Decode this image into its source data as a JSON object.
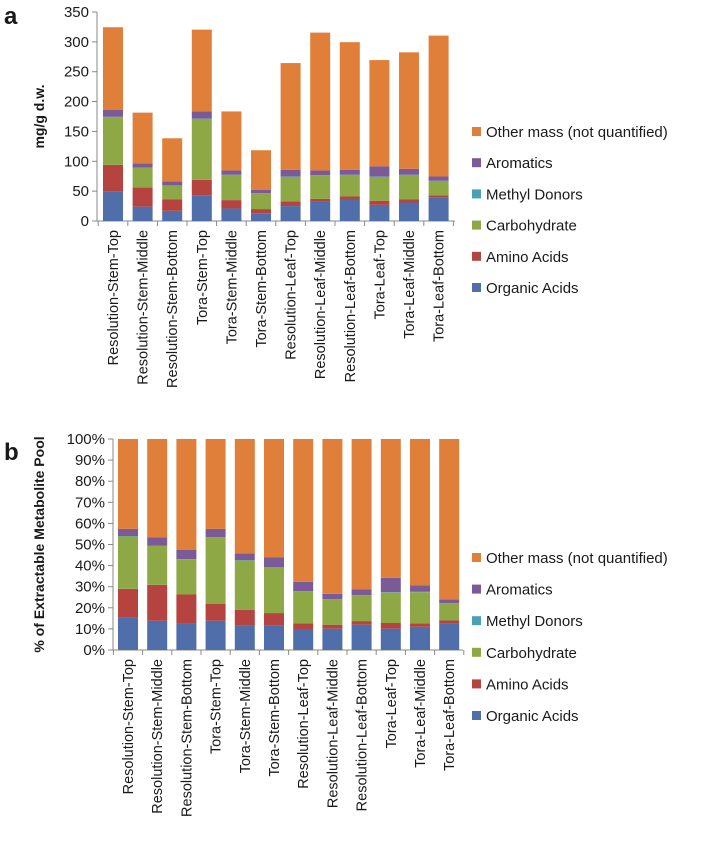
{
  "chart_data": [
    {
      "panel_label": "a",
      "type": "bar",
      "stacked": true,
      "ylabel": "mg/g d.w.",
      "xlabel": "",
      "ylim": [
        0,
        350
      ],
      "yticks": [
        "0",
        "50",
        "100",
        "150",
        "200",
        "250",
        "300",
        "350"
      ],
      "grid": false,
      "legend_position": "right",
      "categories": [
        "Resolution-Stem-Top",
        "Resolution-Stem-Middle",
        "Resolution-Stem-Bottom",
        "Tora-Stem-Top",
        "Tora-Stem-Middle",
        "Tora-Stem-Bottom",
        "Resolution-Leaf-Top",
        "Resolution-Leaf-Middle",
        "Resolution-Leaf-Bottom",
        "Tora-Leaf-Top",
        "Tora-Leaf-Middle",
        "Tora-Leaf-Bottom"
      ],
      "series": [
        {
          "name": "Organic Acids",
          "color": "#4f6eaa",
          "values": [
            50,
            24,
            17,
            43,
            21,
            13,
            25,
            32,
            36,
            27,
            31,
            40
          ]
        },
        {
          "name": "Amino Acids",
          "color": "#b5433f",
          "values": [
            44,
            32,
            19,
            26,
            14,
            7,
            8,
            5,
            5,
            7,
            5,
            3
          ]
        },
        {
          "name": "Carbohydrate",
          "color": "#8ea846",
          "values": [
            80,
            33,
            23,
            102,
            42,
            26,
            41,
            39,
            36,
            40,
            41,
            24
          ]
        },
        {
          "name": "Methyl Donors",
          "color": "#4aa0b5",
          "values": [
            0.5,
            0.5,
            0.5,
            0.5,
            0.5,
            0.5,
            0.5,
            0.5,
            0.5,
            0.5,
            0.5,
            0.5
          ]
        },
        {
          "name": "Aromatics",
          "color": "#7b5a98",
          "values": [
            12,
            7,
            7,
            12,
            7,
            6,
            11,
            8,
            8,
            17,
            10,
            7
          ]
        },
        {
          "name": "Other mass (not quantified)",
          "color": "#e07f3a",
          "values": [
            138,
            85,
            72,
            137,
            99,
            66,
            179,
            231,
            214,
            178,
            195,
            236
          ]
        }
      ]
    },
    {
      "panel_label": "b",
      "type": "bar",
      "stacked": true,
      "ylabel": "% of Extractable Metabolite Pool",
      "xlabel": "",
      "ylim": [
        0,
        100
      ],
      "yticks": [
        "0%",
        "10%",
        "20%",
        "30%",
        "40%",
        "50%",
        "60%",
        "70%",
        "80%",
        "90%",
        "100%"
      ],
      "grid": false,
      "legend_position": "right",
      "categories": [
        "Resolution-Stem-Top",
        "Resolution-Stem-Middle",
        "Resolution-Stem-Bottom",
        "Tora-Stem-Top",
        "Tora-Stem-Middle",
        "Tora-Stem-Bottom",
        "Resolution-Leaf-Top",
        "Resolution-Leaf-Middle",
        "Resolution-Leaf-Bottom",
        "Tora-Leaf-Top",
        "Tora-Leaf-Middle",
        "Tora-Leaf-Bottom"
      ],
      "series": [
        {
          "name": "Organic Acids",
          "color": "#4f6eaa",
          "values": [
            15.6,
            13.9,
            12.6,
            13.9,
            11.8,
            11.5,
            9.5,
            10.1,
            12.0,
            10.1,
            11.0,
            12.5
          ]
        },
        {
          "name": "Amino Acids",
          "color": "#b5433f",
          "values": [
            13.4,
            17.0,
            13.7,
            7.9,
            7.3,
            6.0,
            3.1,
            1.9,
            1.7,
            2.7,
            1.6,
            1.5
          ]
        },
        {
          "name": "Carbohydrate",
          "color": "#8ea846",
          "values": [
            24.8,
            18.4,
            16.5,
            31.5,
            23.3,
            21.6,
            15.1,
            11.8,
            12.1,
            14.4,
            14.8,
            8.0
          ]
        },
        {
          "name": "Methyl Donors",
          "color": "#4aa0b5",
          "values": [
            0.2,
            0.2,
            0.2,
            0.2,
            0.2,
            0.2,
            0.2,
            0.2,
            0.2,
            0.2,
            0.2,
            0.2
          ]
        },
        {
          "name": "Aromatics",
          "color": "#7b5a98",
          "values": [
            3.4,
            3.8,
            4.4,
            3.9,
            3.2,
            4.7,
            4.4,
            2.6,
            2.7,
            6.8,
            3.0,
            1.8
          ]
        },
        {
          "name": "Other mass (not quantified)",
          "color": "#e07f3a",
          "values": [
            42.6,
            46.7,
            52.6,
            42.6,
            54.2,
            56.0,
            67.7,
            73.4,
            71.3,
            65.8,
            69.4,
            76.0
          ]
        }
      ]
    }
  ]
}
